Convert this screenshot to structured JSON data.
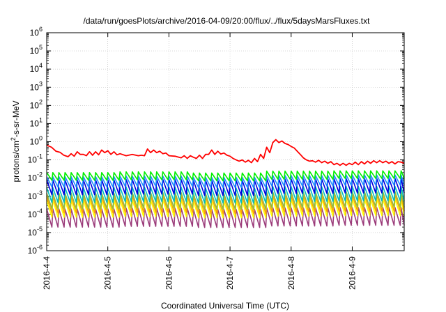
{
  "chart_data": {
    "type": "line",
    "title": "/data/run/goesPlots/archive/2016-04-09/20:00/flux/../flux/5daysMarsFluxes.txt",
    "xlabel": "Coordinated Universal Time (UTC)",
    "ylabel": {
      "base": "protons/cm",
      "sup": "2",
      "rest": "-s-sr-MeV"
    },
    "x_ticks": [
      "2016-4-4",
      "2016-4-5",
      "2016-4-6",
      "2016-4-7",
      "2016-4-8",
      "2016-4-9"
    ],
    "x_range_days": [
      0,
      5.85
    ],
    "y_scale": "log",
    "y_ticks": [
      {
        "base": "10",
        "exp": "-6"
      },
      {
        "base": "10",
        "exp": "-5"
      },
      {
        "base": "10",
        "exp": "-4"
      },
      {
        "base": "10",
        "exp": "-3"
      },
      {
        "base": "10",
        "exp": "-2"
      },
      {
        "base": "10",
        "exp": "-1"
      },
      {
        "base": "10",
        "exp": "0"
      },
      {
        "base": "10",
        "exp": "1"
      },
      {
        "base": "10",
        "exp": "2"
      },
      {
        "base": "10",
        "exp": "3"
      },
      {
        "base": "10",
        "exp": "4"
      },
      {
        "base": "10",
        "exp": "5"
      },
      {
        "base": "10",
        "exp": "6"
      }
    ],
    "ylim": [
      1e-06,
      1000000.0
    ],
    "grid": true,
    "series": [
      {
        "color": "#ff0000",
        "points": [
          [
            0.0,
            0.65
          ],
          [
            0.08,
            0.5
          ],
          [
            0.15,
            0.3
          ],
          [
            0.22,
            0.26
          ],
          [
            0.28,
            0.18
          ],
          [
            0.35,
            0.15
          ],
          [
            0.4,
            0.22
          ],
          [
            0.45,
            0.16
          ],
          [
            0.5,
            0.28
          ],
          [
            0.55,
            0.2
          ],
          [
            0.6,
            0.2
          ],
          [
            0.65,
            0.17
          ],
          [
            0.7,
            0.28
          ],
          [
            0.75,
            0.18
          ],
          [
            0.8,
            0.28
          ],
          [
            0.85,
            0.19
          ],
          [
            0.9,
            0.35
          ],
          [
            0.95,
            0.25
          ],
          [
            1.0,
            0.32
          ],
          [
            1.05,
            0.2
          ],
          [
            1.1,
            0.28
          ],
          [
            1.15,
            0.19
          ],
          [
            1.2,
            0.22
          ],
          [
            1.3,
            0.17
          ],
          [
            1.4,
            0.2
          ],
          [
            1.5,
            0.17
          ],
          [
            1.55,
            0.18
          ],
          [
            1.6,
            0.17
          ],
          [
            1.65,
            0.4
          ],
          [
            1.7,
            0.25
          ],
          [
            1.75,
            0.35
          ],
          [
            1.8,
            0.25
          ],
          [
            1.85,
            0.3
          ],
          [
            1.9,
            0.22
          ],
          [
            1.95,
            0.24
          ],
          [
            2.0,
            0.17
          ],
          [
            2.1,
            0.16
          ],
          [
            2.2,
            0.13
          ],
          [
            2.25,
            0.17
          ],
          [
            2.3,
            0.12
          ],
          [
            2.35,
            0.17
          ],
          [
            2.4,
            0.14
          ],
          [
            2.45,
            0.12
          ],
          [
            2.5,
            0.18
          ],
          [
            2.55,
            0.12
          ],
          [
            2.6,
            0.2
          ],
          [
            2.65,
            0.2
          ],
          [
            2.7,
            0.35
          ],
          [
            2.75,
            0.2
          ],
          [
            2.8,
            0.3
          ],
          [
            2.85,
            0.21
          ],
          [
            2.9,
            0.24
          ],
          [
            2.95,
            0.18
          ],
          [
            3.0,
            0.16
          ],
          [
            3.05,
            0.12
          ],
          [
            3.1,
            0.1
          ],
          [
            3.15,
            0.085
          ],
          [
            3.2,
            0.1
          ],
          [
            3.25,
            0.075
          ],
          [
            3.3,
            0.095
          ],
          [
            3.35,
            0.07
          ],
          [
            3.4,
            0.12
          ],
          [
            3.45,
            0.08
          ],
          [
            3.5,
            0.2
          ],
          [
            3.55,
            0.12
          ],
          [
            3.6,
            0.5
          ],
          [
            3.65,
            0.25
          ],
          [
            3.7,
            0.9
          ],
          [
            3.75,
            1.3
          ],
          [
            3.8,
            0.9
          ],
          [
            3.85,
            1.1
          ],
          [
            3.9,
            0.8
          ],
          [
            3.95,
            0.7
          ],
          [
            4.0,
            0.55
          ],
          [
            4.05,
            0.45
          ],
          [
            4.1,
            0.3
          ],
          [
            4.15,
            0.2
          ],
          [
            4.2,
            0.13
          ],
          [
            4.25,
            0.1
          ],
          [
            4.3,
            0.085
          ],
          [
            4.35,
            0.09
          ],
          [
            4.4,
            0.075
          ],
          [
            4.45,
            0.095
          ],
          [
            4.5,
            0.07
          ],
          [
            4.55,
            0.085
          ],
          [
            4.6,
            0.065
          ],
          [
            4.65,
            0.08
          ],
          [
            4.7,
            0.055
          ],
          [
            4.75,
            0.065
          ],
          [
            4.8,
            0.05
          ],
          [
            4.85,
            0.065
          ],
          [
            4.9,
            0.05
          ],
          [
            4.95,
            0.065
          ],
          [
            5.0,
            0.055
          ],
          [
            5.05,
            0.075
          ],
          [
            5.1,
            0.055
          ],
          [
            5.15,
            0.08
          ],
          [
            5.2,
            0.06
          ],
          [
            5.25,
            0.085
          ],
          [
            5.3,
            0.065
          ],
          [
            5.35,
            0.09
          ],
          [
            5.4,
            0.07
          ],
          [
            5.45,
            0.09
          ],
          [
            5.5,
            0.07
          ],
          [
            5.55,
            0.085
          ],
          [
            5.6,
            0.065
          ],
          [
            5.65,
            0.08
          ],
          [
            5.7,
            0.06
          ],
          [
            5.75,
            0.08
          ],
          [
            5.8,
            0.075
          ],
          [
            5.85,
            0.065
          ]
        ]
      }
    ],
    "sawtooth_series": [
      {
        "color": "#00ee00",
        "high": [
          0.02,
          0.022,
          0.019,
          0.024,
          0.025
        ],
        "low": [
          0.0075,
          0.008,
          0.007,
          0.0085,
          0.0095
        ]
      },
      {
        "color": "#1e90ff",
        "high": [
          0.012,
          0.013,
          0.011,
          0.014,
          0.015
        ],
        "low": [
          0.0032,
          0.0035,
          0.003,
          0.0036,
          0.004
        ]
      },
      {
        "color": "#0000dd",
        "high": [
          0.008,
          0.0085,
          0.0075,
          0.009,
          0.0095
        ],
        "low": [
          0.0012,
          0.0013,
          0.0011,
          0.0014,
          0.0015
        ]
      },
      {
        "color": "#00bfbf",
        "high": [
          0.003,
          0.0032,
          0.0028,
          0.0034,
          0.0035
        ],
        "low": [
          0.00045,
          0.0005,
          0.00042,
          0.00052,
          0.00055
        ]
      },
      {
        "color": "#8fbc3f",
        "high": [
          0.0015,
          0.0016,
          0.0014,
          0.0017,
          0.0018
        ],
        "low": [
          0.0002,
          0.00022,
          0.00019,
          0.00023,
          0.00025
        ]
      },
      {
        "color": "#ffa500",
        "high": [
          0.001,
          0.0011,
          0.00095,
          0.0011,
          0.0012
        ],
        "low": [
          0.00012,
          0.00013,
          0.00011,
          0.00014,
          0.00015
        ]
      },
      {
        "color": "#ffff00",
        "high": [
          0.0006,
          0.00065,
          0.00055,
          0.0007,
          0.00072
        ],
        "low": [
          7e-05,
          7.5e-05,
          6.5e-05,
          8e-05,
          8.5e-05
        ]
      },
      {
        "color": "#9b3b7a",
        "high": [
          0.0002,
          0.00022,
          0.00019,
          0.00023,
          0.00024
        ],
        "low": [
          2e-05,
          2.2e-05,
          1.9e-05,
          2.3e-05,
          2.5e-05
        ]
      }
    ],
    "sawtooth_period_days": 0.1
  }
}
